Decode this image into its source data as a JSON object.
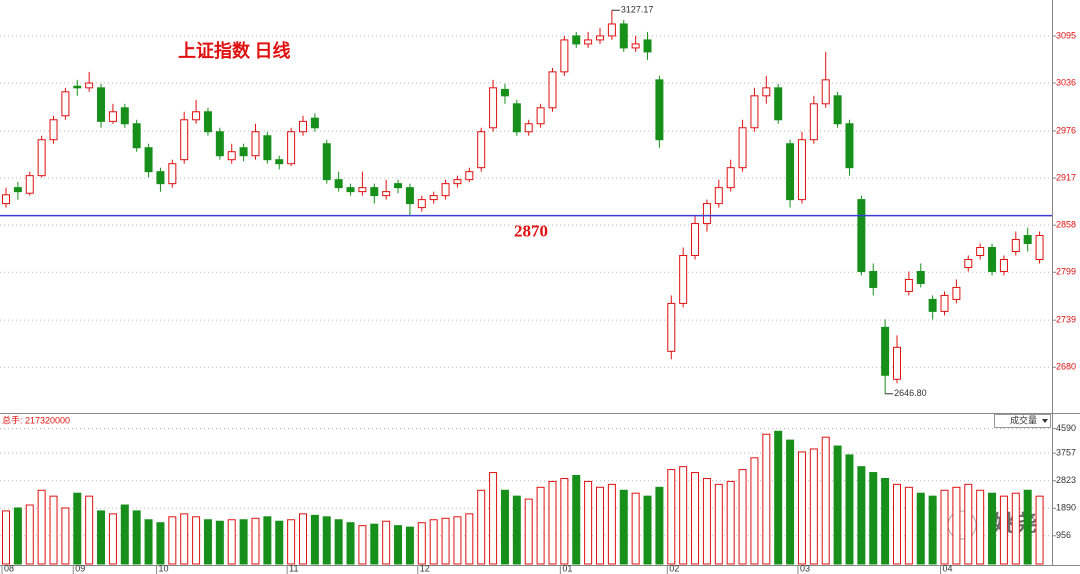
{
  "chart_data": {
    "type": "candlestick",
    "title": "上证指数 日线",
    "level": 2870,
    "max_label": "3127.17",
    "min_label": "2646.80",
    "volume_label": "总手: 217320000",
    "volume_selector": "成交量",
    "watermark": "姚尧",
    "up_color": "#e01010",
    "down_color": "#16901a",
    "level_color": "#3c3cd6",
    "grid": true,
    "categories": [
      "08",
      null,
      null,
      null,
      null,
      null,
      "09",
      null,
      null,
      null,
      null,
      null,
      null,
      "10",
      null,
      null,
      null,
      null,
      null,
      null,
      null,
      null,
      null,
      null,
      "11",
      null,
      null,
      null,
      null,
      null,
      null,
      null,
      null,
      null,
      null,
      "12",
      null,
      null,
      null,
      null,
      null,
      null,
      null,
      null,
      null,
      null,
      null,
      "01",
      null,
      null,
      null,
      null,
      null,
      null,
      null,
      null,
      "02",
      null,
      null,
      null,
      null,
      null,
      null,
      null,
      null,
      null,
      null,
      "03",
      null,
      null,
      null,
      null,
      null,
      null,
      null,
      null,
      null,
      null,
      null,
      "04",
      null,
      null,
      null,
      null,
      null,
      null,
      null,
      null
    ],
    "open": [
      2885,
      2905,
      2898,
      2920,
      2965,
      2995,
      3032,
      3030,
      3030,
      2988,
      3005,
      2985,
      2955,
      2925,
      2910,
      2940,
      2990,
      3000,
      2975,
      2940,
      2955,
      2945,
      2970,
      2940,
      2935,
      2975,
      2992,
      2960,
      2915,
      2905,
      2900,
      2905,
      2895,
      2910,
      2905,
      2880,
      2890,
      2895,
      2910,
      2915,
      2930,
      2980,
      3028,
      3010,
      2975,
      2985,
      3005,
      3050,
      3095,
      3085,
      3090,
      3095,
      3110,
      3080,
      3090,
      3040,
      2700,
      2760,
      2820,
      2860,
      2885,
      2905,
      2930,
      2980,
      3020,
      3030,
      2960,
      2890,
      2965,
      3010,
      3020,
      2985,
      2890,
      2800,
      2730,
      2665,
      2775,
      2800,
      2765,
      2750,
      2765,
      2805,
      2820,
      2830,
      2800,
      2825,
      2845,
      2815
    ],
    "high": [
      2905,
      2912,
      2925,
      2970,
      2995,
      3030,
      3040,
      3050,
      3035,
      3010,
      3010,
      2990,
      2960,
      2930,
      2940,
      3000,
      3015,
      3005,
      2980,
      2960,
      2960,
      2985,
      2975,
      2945,
      2980,
      2995,
      2998,
      2965,
      2925,
      2910,
      2925,
      2910,
      2915,
      2915,
      2910,
      2895,
      2900,
      2915,
      2920,
      2930,
      2980,
      3040,
      3035,
      3015,
      2990,
      3010,
      3055,
      3095,
      3100,
      3100,
      3105,
      3127.17,
      3115,
      3095,
      3100,
      3045,
      2770,
      2830,
      2870,
      2890,
      2915,
      2940,
      2990,
      3030,
      3045,
      3035,
      2965,
      2975,
      3020,
      3075,
      3025,
      2990,
      2895,
      2810,
      2740,
      2720,
      2800,
      2810,
      2770,
      2775,
      2790,
      2820,
      2835,
      2835,
      2820,
      2850,
      2855,
      2850
    ],
    "low": [
      2880,
      2890,
      2895,
      2918,
      2960,
      2990,
      3020,
      3025,
      2980,
      2985,
      2980,
      2950,
      2918,
      2900,
      2905,
      2935,
      2985,
      2970,
      2940,
      2935,
      2938,
      2940,
      2935,
      2928,
      2932,
      2970,
      2975,
      2910,
      2900,
      2895,
      2895,
      2885,
      2890,
      2898,
      2870,
      2875,
      2885,
      2890,
      2905,
      2912,
      2925,
      2975,
      3010,
      2970,
      2970,
      2980,
      3000,
      3045,
      3080,
      3080,
      3085,
      3090,
      3075,
      3075,
      3065,
      2955,
      2690,
      2755,
      2815,
      2850,
      2880,
      2900,
      2925,
      2975,
      3010,
      2985,
      2880,
      2885,
      2960,
      3005,
      2980,
      2920,
      2795,
      2770,
      2646.8,
      2660,
      2770,
      2780,
      2740,
      2745,
      2760,
      2800,
      2815,
      2795,
      2795,
      2820,
      2825,
      2810
    ],
    "close": [
      2896,
      2900,
      2920,
      2965,
      2990,
      3025,
      3030,
      3036,
      2988,
      3000,
      2985,
      2955,
      2925,
      2910,
      2935,
      2990,
      3000,
      2975,
      2945,
      2950,
      2945,
      2975,
      2940,
      2935,
      2975,
      2988,
      2980,
      2915,
      2905,
      2900,
      2905,
      2895,
      2900,
      2905,
      2885,
      2890,
      2895,
      2910,
      2915,
      2925,
      2975,
      3030,
      3020,
      2975,
      2985,
      3005,
      3050,
      3090,
      3085,
      3090,
      3095,
      3110,
      3080,
      3085,
      3075,
      2965,
      2760,
      2820,
      2860,
      2885,
      2905,
      2930,
      2980,
      3020,
      3030,
      2990,
      2890,
      2965,
      3010,
      3040,
      2985,
      2930,
      2800,
      2780,
      2670,
      2705,
      2790,
      2785,
      2750,
      2770,
      2780,
      2815,
      2830,
      2800,
      2815,
      2840,
      2835,
      2845
    ],
    "volume": [
      1800,
      1900,
      2000,
      2500,
      2300,
      1900,
      2400,
      2300,
      1800,
      1700,
      2000,
      1800,
      1500,
      1400,
      1600,
      1700,
      1600,
      1500,
      1450,
      1500,
      1500,
      1550,
      1600,
      1450,
      1500,
      1700,
      1650,
      1600,
      1500,
      1400,
      1300,
      1350,
      1450,
      1300,
      1250,
      1400,
      1500,
      1550,
      1600,
      1700,
      2500,
      3100,
      2500,
      2300,
      2200,
      2600,
      2800,
      2900,
      3000,
      2800,
      2600,
      2700,
      2500,
      2400,
      2300,
      2600,
      3200,
      3300,
      3100,
      2900,
      2700,
      2800,
      3200,
      3600,
      4400,
      4500,
      4200,
      3800,
      3900,
      4300,
      4000,
      3700,
      3300,
      3100,
      2900,
      2700,
      2600,
      2400,
      2300,
      2500,
      2600,
      2700,
      2500,
      2400,
      2300,
      2400,
      2500,
      2300
    ],
    "ylim": [
      2624,
      3140
    ],
    "yticks": [
      3095,
      3036,
      2976,
      2917,
      2858,
      2799,
      2739,
      2680
    ],
    "y2lim": [
      0,
      4950
    ],
    "y2ticks": [
      4590,
      3757,
      2823,
      1890,
      956
    ]
  }
}
